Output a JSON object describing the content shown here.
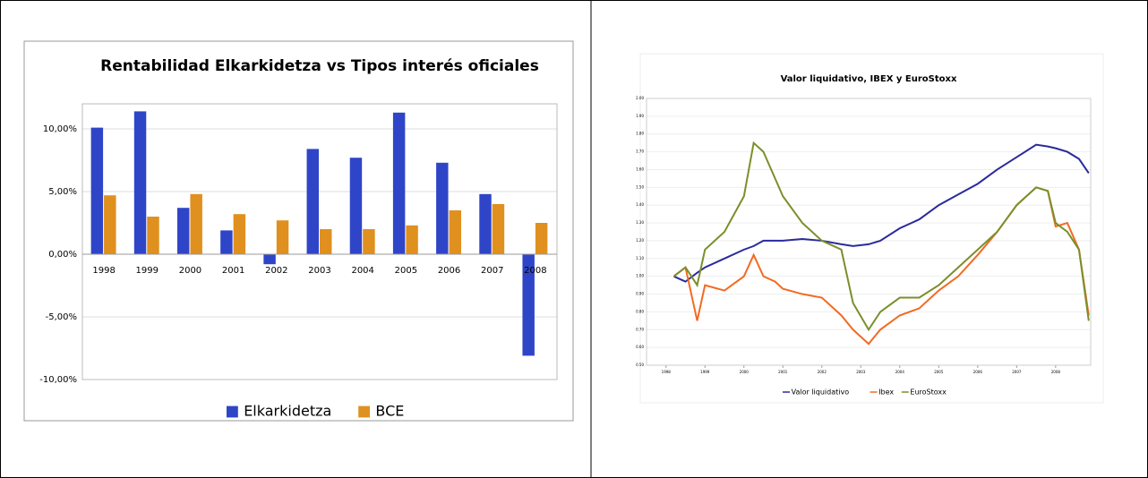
{
  "chart_data": [
    {
      "type": "bar",
      "title": "Rentabilidad Elkarkidetza vs Tipos interés oficiales",
      "categories": [
        "1998",
        "1999",
        "2000",
        "2001",
        "2002",
        "2003",
        "2004",
        "2005",
        "2006",
        "2007",
        "2008"
      ],
      "series": [
        {
          "name": "Elkarkidetza",
          "color": "#2f45c8",
          "values": [
            10.1,
            11.4,
            3.7,
            1.9,
            -0.8,
            8.4,
            7.7,
            11.3,
            7.3,
            4.8,
            -8.1
          ]
        },
        {
          "name": "BCE",
          "color": "#e0901e",
          "values": [
            4.7,
            3.0,
            4.8,
            3.2,
            2.7,
            2.0,
            2.0,
            2.3,
            3.5,
            4.0,
            2.5
          ]
        }
      ],
      "ylim": [
        -10,
        12
      ],
      "yticks": [
        {
          "value": 10,
          "label": "10,00%"
        },
        {
          "value": 5,
          "label": "5,00%"
        },
        {
          "value": 0,
          "label": "0,00%"
        },
        {
          "value": -5,
          "label": "-5,00%"
        },
        {
          "value": -10,
          "label": "-10,00%"
        }
      ],
      "grid": true,
      "legend": "bottom"
    },
    {
      "type": "line",
      "title": "Valor liquidativo, IBEX y EuroStoxx",
      "x": [
        1998.2,
        1998.5,
        1998.8,
        1999,
        1999.5,
        2000,
        2000.25,
        2000.5,
        2000.8,
        2001,
        2001.5,
        2002,
        2002.5,
        2002.8,
        2003.2,
        2003.5,
        2004,
        2004.5,
        2005,
        2005.5,
        2006,
        2006.5,
        2007,
        2007.5,
        2007.8,
        2008,
        2008.3,
        2008.6,
        2008.85
      ],
      "series": [
        {
          "name": "Valor liquidativo",
          "color": "#2a2a9c",
          "values": [
            1.0,
            0.97,
            1.02,
            1.05,
            1.1,
            1.15,
            1.17,
            1.2,
            1.2,
            1.2,
            1.21,
            1.2,
            1.18,
            1.17,
            1.18,
            1.2,
            1.27,
            1.32,
            1.4,
            1.46,
            1.52,
            1.6,
            1.67,
            1.74,
            1.73,
            1.72,
            1.7,
            1.66,
            1.58
          ]
        },
        {
          "name": "Ibex",
          "color": "#f26a22",
          "values": [
            1.0,
            1.05,
            0.75,
            0.95,
            0.92,
            1.0,
            1.12,
            1.0,
            0.97,
            0.93,
            0.9,
            0.88,
            0.78,
            0.7,
            0.62,
            0.7,
            0.78,
            0.82,
            0.92,
            1.0,
            1.12,
            1.25,
            1.4,
            1.5,
            1.48,
            1.28,
            1.3,
            1.15,
            0.78
          ]
        },
        {
          "name": "EuroStoxx",
          "color": "#7a8f2a",
          "values": [
            1.0,
            1.05,
            0.95,
            1.15,
            1.25,
            1.45,
            1.75,
            1.7,
            1.55,
            1.45,
            1.3,
            1.2,
            1.15,
            0.85,
            0.7,
            0.8,
            0.88,
            0.88,
            0.95,
            1.05,
            1.15,
            1.25,
            1.4,
            1.5,
            1.48,
            1.3,
            1.25,
            1.15,
            0.75
          ]
        }
      ],
      "xlim": [
        1997.5,
        2008.9
      ],
      "xticks": [
        1998,
        1999,
        2000,
        2001,
        2002,
        2003,
        2004,
        2005,
        2006,
        2007,
        2008
      ],
      "ylim": [
        0.5,
        2.0
      ],
      "yticks": [
        {
          "value": 0.5,
          "label": "0.50"
        },
        {
          "value": 0.6,
          "label": "0.60"
        },
        {
          "value": 0.7,
          "label": "0.70"
        },
        {
          "value": 0.8,
          "label": "0.80"
        },
        {
          "value": 0.9,
          "label": "0.90"
        },
        {
          "value": 1.0,
          "label": "1.00"
        },
        {
          "value": 1.1,
          "label": "1.10"
        },
        {
          "value": 1.2,
          "label": "1.20"
        },
        {
          "value": 1.3,
          "label": "1.30"
        },
        {
          "value": 1.4,
          "label": "1.40"
        },
        {
          "value": 1.5,
          "label": "1.50"
        },
        {
          "value": 1.6,
          "label": "1.60"
        },
        {
          "value": 1.7,
          "label": "1.70"
        },
        {
          "value": 1.8,
          "label": "1.80"
        },
        {
          "value": 1.9,
          "label": "1.90"
        },
        {
          "value": 2.0,
          "label": "2.00"
        }
      ],
      "grid": true,
      "legend": "bottom"
    }
  ]
}
